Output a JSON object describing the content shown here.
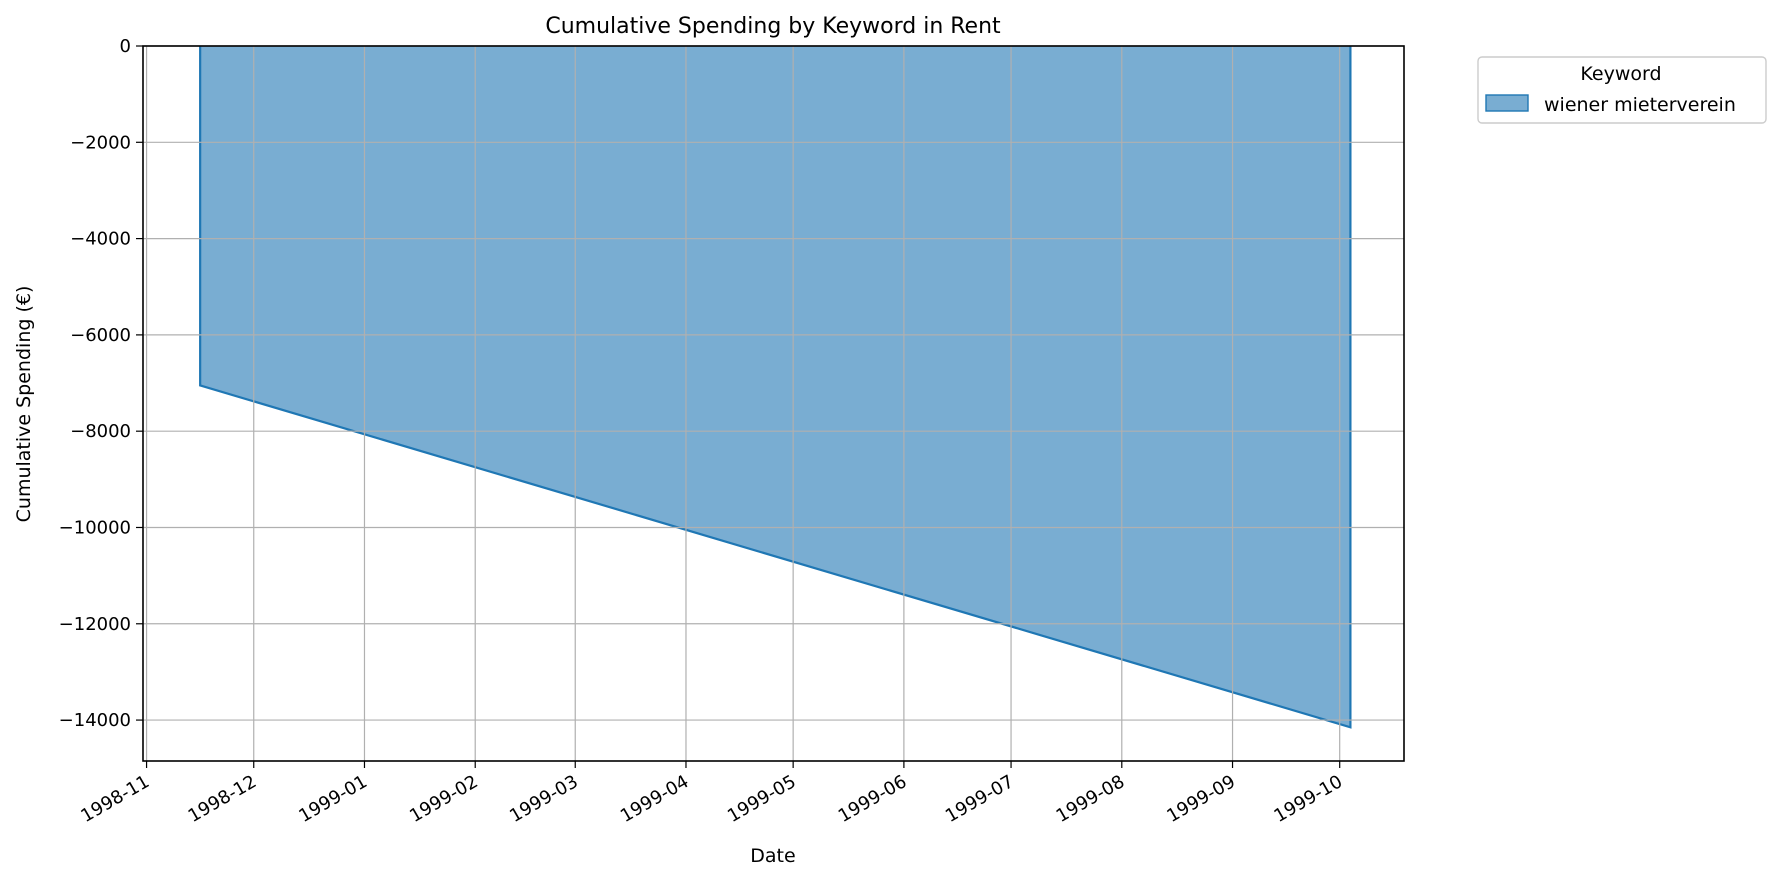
{
  "chart_data": {
    "type": "area",
    "title": "Cumulative Spending by Keyword in Rent",
    "xlabel": "Date",
    "ylabel": "Cumulative Spending (€)",
    "x_axis_type": "date",
    "xlim": [
      "1998-10-31",
      "1999-10-19"
    ],
    "ylim": [
      -14850,
      0
    ],
    "x_ticks": [
      "1998-11",
      "1998-12",
      "1999-01",
      "1999-02",
      "1999-03",
      "1999-04",
      "1999-05",
      "1999-06",
      "1999-07",
      "1999-08",
      "1999-09",
      "1999-10"
    ],
    "y_ticks": [
      0,
      -2000,
      -4000,
      -6000,
      -8000,
      -10000,
      -12000,
      -14000
    ],
    "grid": true,
    "legend": {
      "title": "Keyword",
      "placement": "outside-upper-right"
    },
    "series": [
      {
        "name": "wiener mieterverein",
        "color": "#1f77b4",
        "x": [
          "1998-11-16",
          "1999-10-04"
        ],
        "values": [
          -7050,
          -14150
        ]
      }
    ]
  }
}
